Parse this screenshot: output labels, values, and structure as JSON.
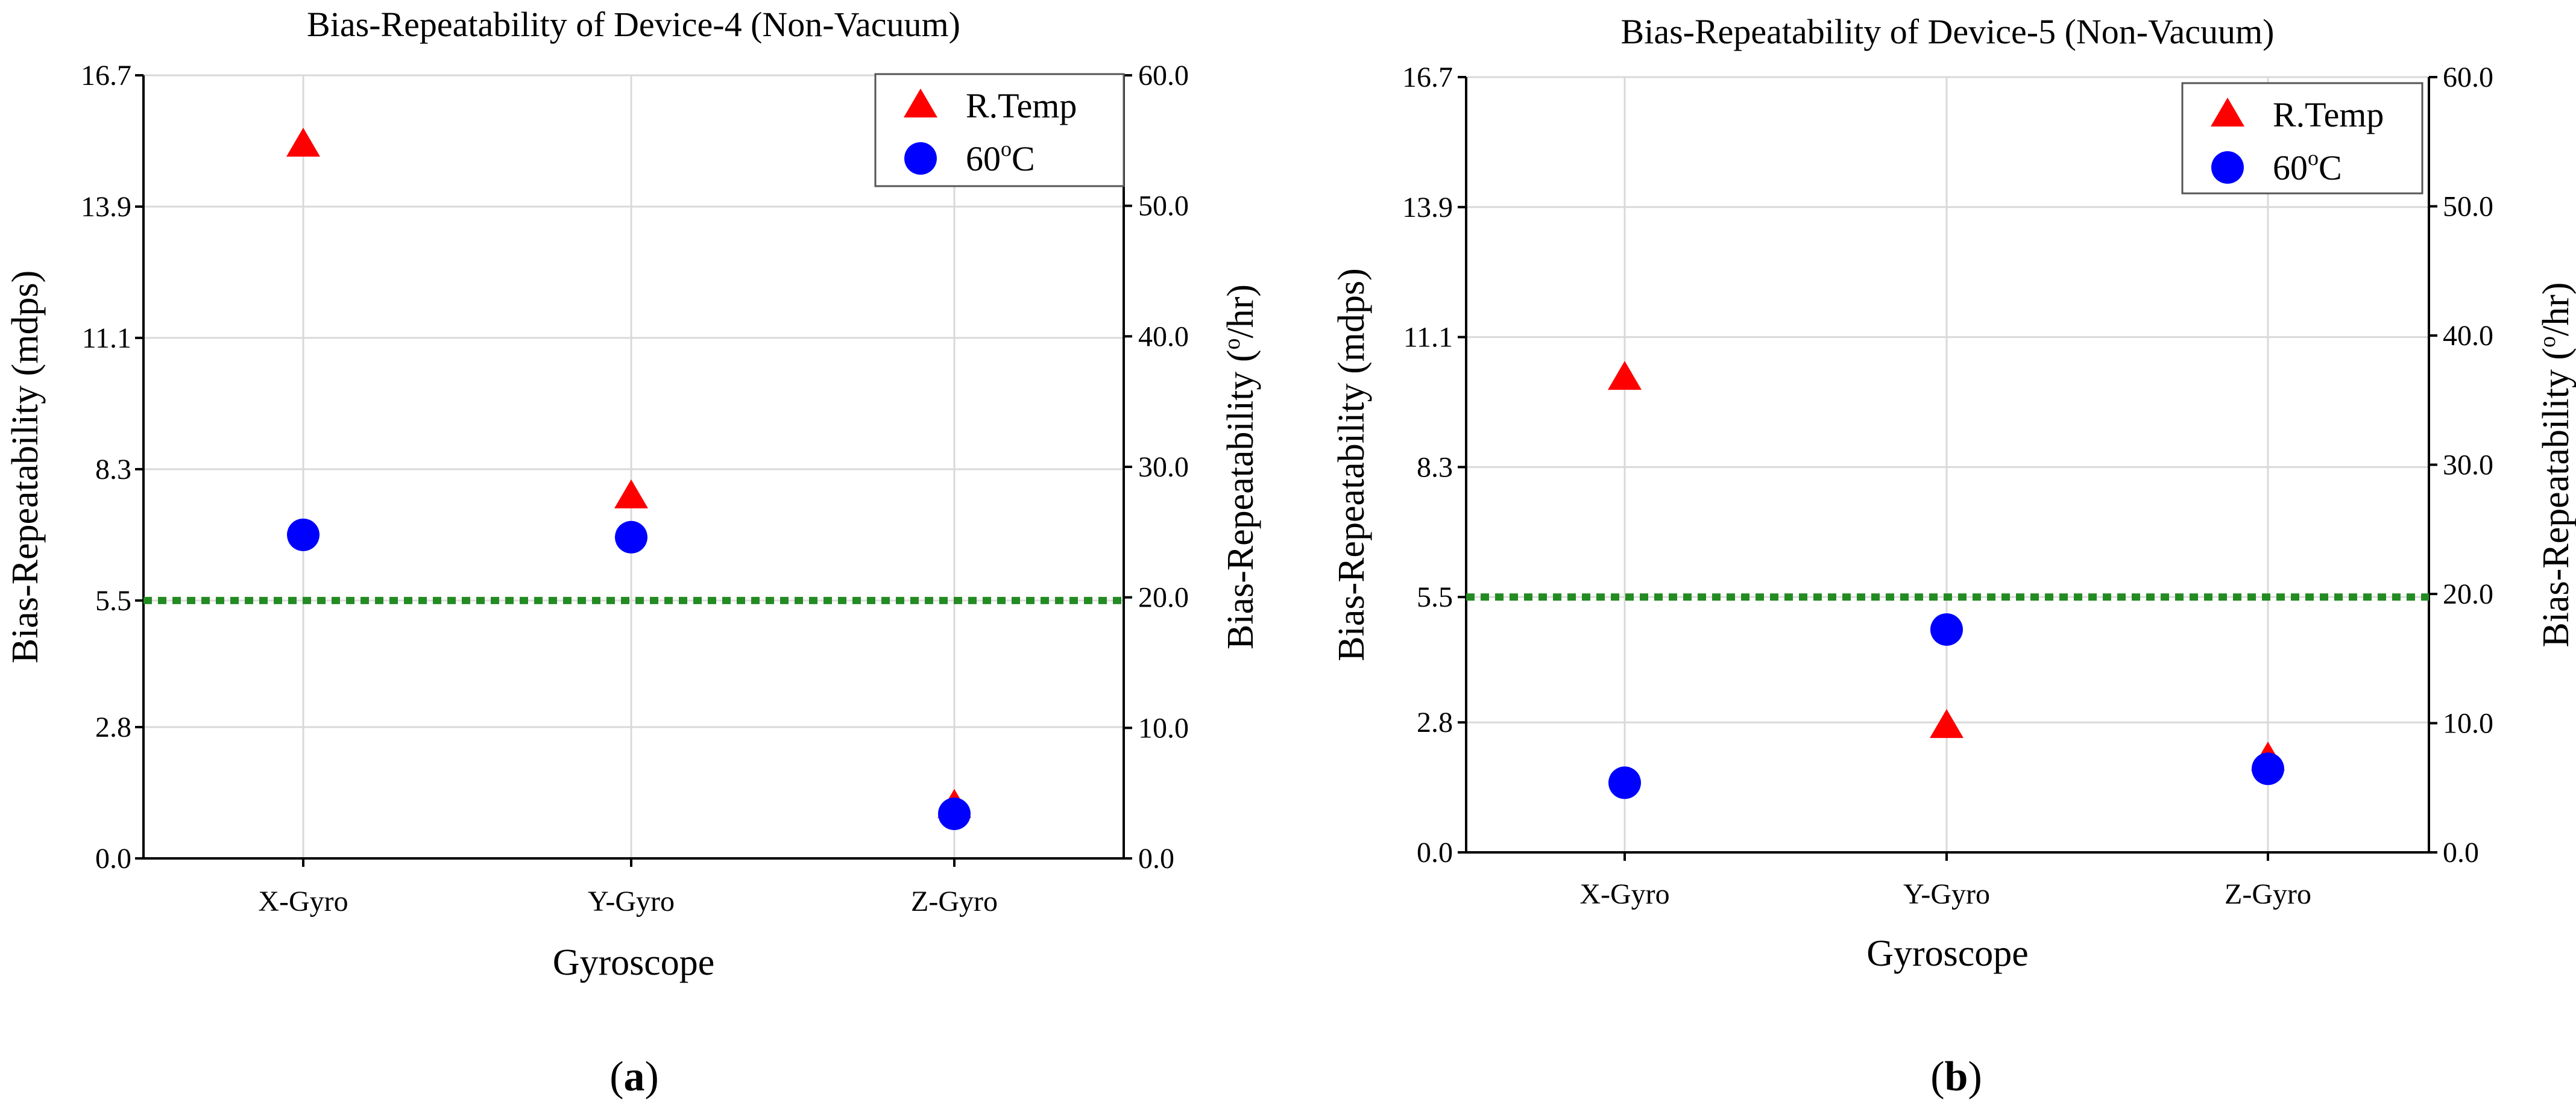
{
  "chart_data": [
    {
      "type": "scatter",
      "panel_label": "a",
      "title": "Bias-Repeatability of Device-4 (Non-Vacuum)",
      "xlabel": "Gyroscope",
      "ylabel": "Bias-Repeatability (mdps)",
      "y2label_prefix": "Bias-Repeatability (",
      "y2label_sup": "o",
      "y2label_suffix": "/hr)",
      "categories": [
        "X-Gyro",
        "Y-Gyro",
        "Z-Gyro"
      ],
      "ylim": [
        0,
        16.7
      ],
      "yticks": [
        "0.0",
        "2.8",
        "5.5",
        "8.3",
        "11.1",
        "13.9",
        "16.7"
      ],
      "y2lim": [
        0,
        60
      ],
      "y2ticks": [
        "0.0",
        "10.0",
        "20.0",
        "30.0",
        "40.0",
        "50.0",
        "60.0"
      ],
      "threshold": {
        "value": 5.5,
        "color": "#228B22",
        "style": "dotted"
      },
      "series": [
        {
          "name": "R.Temp",
          "marker": "triangle",
          "color": "#FF0000",
          "values": [
            15.2,
            7.7,
            1.1
          ]
        },
        {
          "name": "60",
          "name_sup": "o",
          "name_suffix": "C",
          "marker": "circle",
          "color": "#0000FF",
          "values": [
            6.9,
            6.85,
            0.95
          ]
        }
      ],
      "grid": true,
      "legend": "top-right"
    },
    {
      "type": "scatter",
      "panel_label": "b",
      "title": "Bias-Repeatability of Device-5 (Non-Vacuum)",
      "xlabel": "Gyroscope",
      "ylabel": "Bias-Repeatability (mdps)",
      "y2label_prefix": "Bias-Repeatability (",
      "y2label_sup": "o",
      "y2label_suffix": "/hr)",
      "categories": [
        "X-Gyro",
        "Y-Gyro",
        "Z-Gyro"
      ],
      "ylim": [
        0,
        16.7
      ],
      "yticks": [
        "0.0",
        "2.8",
        "5.5",
        "8.3",
        "11.1",
        "13.9",
        "16.7"
      ],
      "y2lim": [
        0,
        60
      ],
      "y2ticks": [
        "0.0",
        "10.0",
        "20.0",
        "30.0",
        "40.0",
        "50.0",
        "60.0"
      ],
      "threshold": {
        "value": 5.5,
        "color": "#228B22",
        "style": "dotted"
      },
      "series": [
        {
          "name": "R.Temp",
          "marker": "triangle",
          "color": "#FF0000",
          "values": [
            10.2,
            2.7,
            2.0
          ]
        },
        {
          "name": "60",
          "name_sup": "o",
          "name_suffix": "C",
          "marker": "circle",
          "color": "#0000FF",
          "values": [
            1.5,
            4.8,
            1.8
          ]
        }
      ],
      "grid": true,
      "legend": "top-right"
    }
  ]
}
